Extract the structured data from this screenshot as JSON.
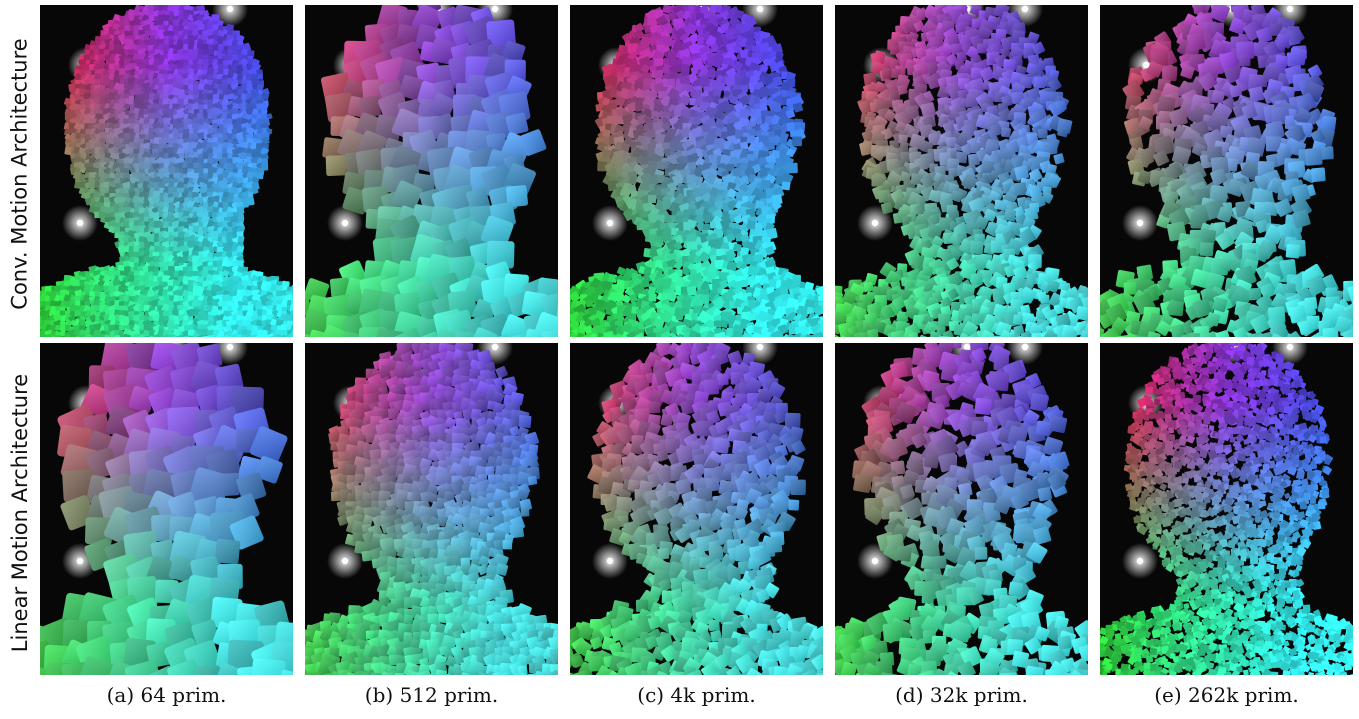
{
  "rows": [
    {
      "label": "Conv. Motion Architecture"
    },
    {
      "label": "Linear Motion Architecture"
    }
  ],
  "captions": [
    "(a) 64 prim.",
    "(b) 512 prim.",
    "(c) 4k prim.",
    "(d) 32k prim.",
    "(e) 262k prim."
  ],
  "colors": {
    "red": "#e8242b",
    "magenta": "#8a34d8",
    "blue": "#2e50e6",
    "green": "#2fd43a",
    "cyan": "#34ecee",
    "background": "#070707"
  }
}
